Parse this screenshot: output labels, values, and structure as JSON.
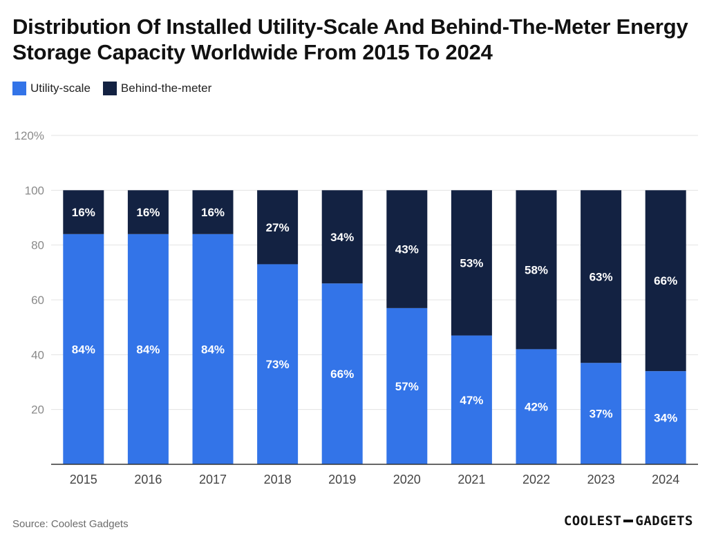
{
  "title": "Distribution Of Installed Utility-Scale And Behind-The-Meter Energy Storage Capacity Worldwide From 2015 To 2024",
  "source": "Source: Coolest Gadgets",
  "logo": {
    "left": "COOLEST",
    "right": "GADGETS"
  },
  "colors": {
    "utility": "#3374e8",
    "btm": "#132242",
    "grid": "#e3e3e3",
    "axis": "#333333",
    "tick": "#8a8a8a"
  },
  "chart_data": {
    "type": "bar",
    "stacked": true,
    "categories": [
      "2015",
      "2016",
      "2017",
      "2018",
      "2019",
      "2020",
      "2021",
      "2022",
      "2023",
      "2024"
    ],
    "series": [
      {
        "name": "Utility-scale",
        "values": [
          84,
          84,
          84,
          73,
          66,
          57,
          47,
          42,
          37,
          34
        ],
        "labels": [
          "84%",
          "84%",
          "84%",
          "73%",
          "66%",
          "57%",
          "47%",
          "42%",
          "37%",
          "34%"
        ]
      },
      {
        "name": "Behind-the-meter",
        "values": [
          16,
          16,
          16,
          27,
          34,
          43,
          53,
          58,
          63,
          66
        ],
        "labels": [
          "16%",
          "16%",
          "16%",
          "27%",
          "34%",
          "43%",
          "53%",
          "58%",
          "63%",
          "66%"
        ]
      }
    ],
    "ylim": [
      0,
      120
    ],
    "yticks": [
      20,
      40,
      60,
      80,
      100,
      120
    ],
    "ytick_labels": [
      "20",
      "40",
      "60",
      "80",
      "100",
      "120%"
    ],
    "legend_position": "top-left",
    "grid": true
  }
}
